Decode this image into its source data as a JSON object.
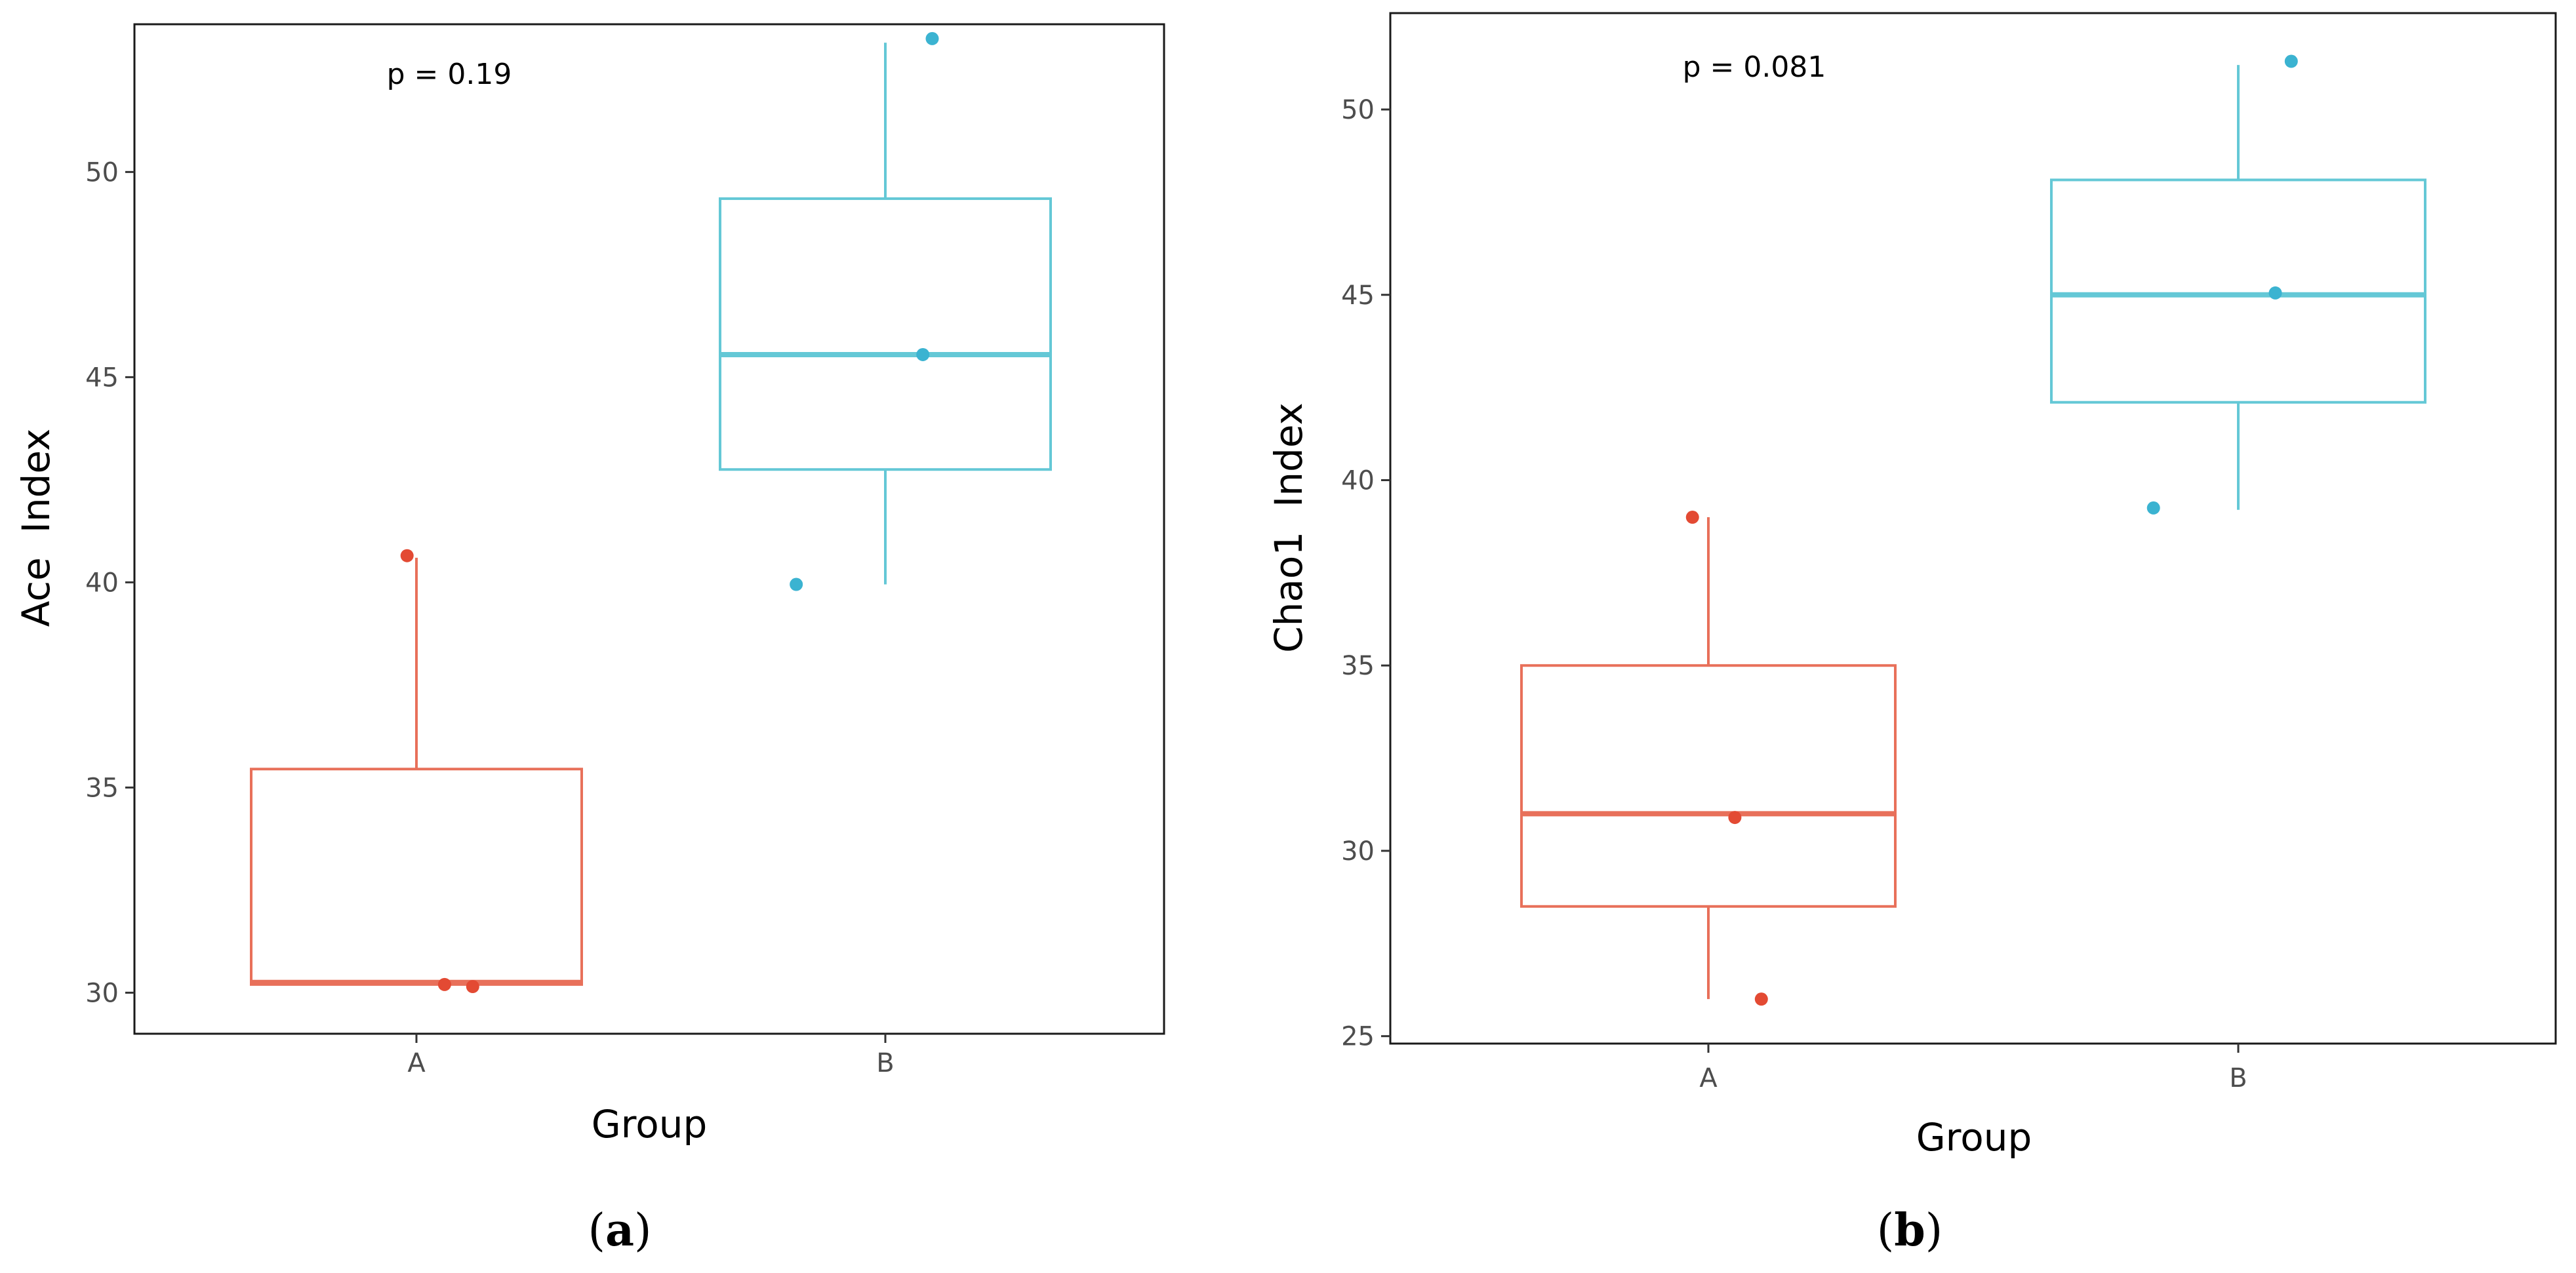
{
  "colors": {
    "A": "#E8705A",
    "A_point": "#E34A33",
    "B": "#64C8D6",
    "B_point": "#3BB3D1"
  },
  "chart_data": [
    {
      "type": "box",
      "panel_label": {
        "open": "(",
        "letter": "a",
        "close": ")"
      },
      "annotation": "p = 0.19",
      "xlabel": "Group",
      "ylabel": "Ace  Index",
      "categories": [
        "A",
        "B"
      ],
      "ylim": [
        29.0,
        53.6
      ],
      "yticks": [
        30,
        35,
        40,
        45,
        50
      ],
      "ytick_labels": [
        "30",
        "35",
        "40",
        "45",
        "50"
      ],
      "boxes": [
        {
          "group": "A",
          "whisker_low": 30.2,
          "q1": 30.2,
          "median": 30.25,
          "q3": 35.45,
          "whisker_high": 40.6
        },
        {
          "group": "B",
          "whisker_low": 39.95,
          "q1": 42.75,
          "median": 45.55,
          "q3": 49.35,
          "whisker_high": 53.15
        }
      ],
      "points": [
        {
          "group": "A",
          "offset": -0.02,
          "value": 40.65
        },
        {
          "group": "A",
          "offset": 0.06,
          "value": 30.2
        },
        {
          "group": "A",
          "offset": 0.12,
          "value": 30.15
        },
        {
          "group": "B",
          "offset": 0.1,
          "value": 53.25
        },
        {
          "group": "B",
          "offset": 0.08,
          "value": 45.55
        },
        {
          "group": "B",
          "offset": -0.19,
          "value": 39.95
        }
      ]
    },
    {
      "type": "box",
      "panel_label": {
        "open": "(",
        "letter": "b",
        "close": ")"
      },
      "annotation": "p = 0.081",
      "xlabel": "Group",
      "ylabel": "Chao1  Index",
      "categories": [
        "A",
        "B"
      ],
      "ylim": [
        24.8,
        52.6
      ],
      "yticks": [
        25,
        30,
        35,
        40,
        45,
        50
      ],
      "ytick_labels": [
        "25",
        "30",
        "35",
        "40",
        "45",
        "50"
      ],
      "boxes": [
        {
          "group": "A",
          "whisker_low": 26.0,
          "q1": 28.5,
          "median": 31.0,
          "q3": 35.0,
          "whisker_high": 39.0
        },
        {
          "group": "B",
          "whisker_low": 39.2,
          "q1": 42.1,
          "median": 45.0,
          "q3": 48.1,
          "whisker_high": 51.2
        }
      ],
      "points": [
        {
          "group": "A",
          "offset": -0.03,
          "value": 39.0
        },
        {
          "group": "A",
          "offset": 0.05,
          "value": 30.9
        },
        {
          "group": "A",
          "offset": 0.1,
          "value": 26.0
        },
        {
          "group": "B",
          "offset": 0.1,
          "value": 51.3
        },
        {
          "group": "B",
          "offset": 0.07,
          "value": 45.05
        },
        {
          "group": "B",
          "offset": -0.16,
          "value": 39.25
        }
      ]
    }
  ]
}
